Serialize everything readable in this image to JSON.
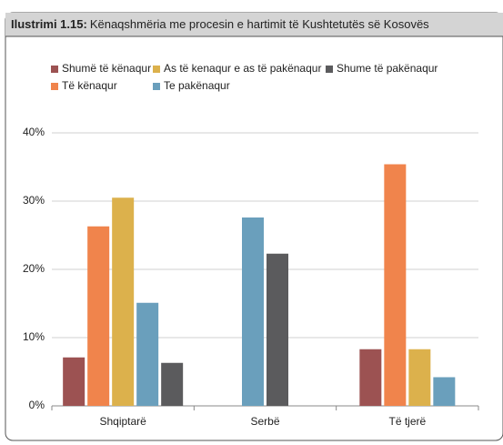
{
  "chart_data": {
    "type": "bar",
    "figure_label": "Ilustrimi 1.15:",
    "title": "Kënaqshmëria me procesin e hartimit të Kushtetutës së Kosovës",
    "categories": [
      "Shqiptarë",
      "Serbë",
      "Të tjerë"
    ],
    "series": [
      {
        "name": "Shumë të kënaqur",
        "color": "#9c5252",
        "values": [
          7.1,
          null,
          8.3
        ]
      },
      {
        "name": "Të kënaqur",
        "color": "#f0844c",
        "values": [
          26.3,
          null,
          35.4
        ]
      },
      {
        "name": "As të kenaqur e as të pakënaqur",
        "color": "#dcb14c",
        "values": [
          30.5,
          null,
          8.3
        ]
      },
      {
        "name": "Te pakënaqur",
        "color": "#6a9fbc",
        "values": [
          15.1,
          27.6,
          4.2
        ]
      },
      {
        "name": "Shume të pakënaqur",
        "color": "#5b5b5d",
        "values": [
          6.3,
          22.3,
          null
        ]
      }
    ],
    "ylim": [
      0,
      40
    ],
    "yticks": [
      {
        "value": 0,
        "label": "0%"
      },
      {
        "value": 10,
        "label": "10%"
      },
      {
        "value": 20,
        "label": "20%"
      },
      {
        "value": 30,
        "label": "30%"
      },
      {
        "value": 40,
        "label": "40%"
      }
    ],
    "grid": true
  }
}
